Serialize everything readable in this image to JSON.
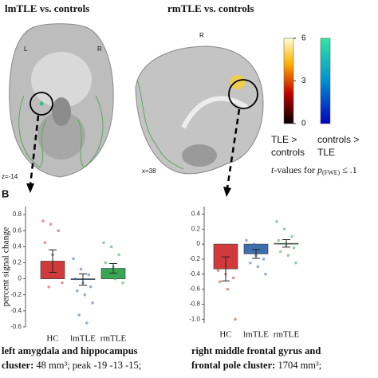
{
  "panel_a": {
    "title_left": "lmTLE vs. controls",
    "title_right": "rmTLE vs. controls",
    "orient_left_l": "L",
    "orient_left_r": "R",
    "orient_right_r": "R",
    "slice_left": "z=-14",
    "slice_right": "x=38"
  },
  "colorbar": {
    "ticks": [
      6,
      3,
      0
    ],
    "label_pos": "TLE >",
    "label_pos2": "controls",
    "label_neg": "controls >",
    "label_neg2": "TLE",
    "caption_t": "t",
    "caption_mid": "-values for ",
    "caption_p": "p",
    "caption_sub": "(FWE)",
    "caption_end": " ≤ .1"
  },
  "panel_b": {
    "label": "B"
  },
  "chart_data": [
    {
      "type": "bar",
      "ylabel": "percent signal change",
      "categories": [
        "HC",
        "lmTLE",
        "rmTLE"
      ],
      "values": [
        0.22,
        -0.01,
        0.13
      ],
      "errors": [
        0.14,
        0.07,
        0.06
      ],
      "colors": [
        "#d13a3c",
        "#3d6fae",
        "#3aa655"
      ],
      "points": [
        [
          0.72,
          0.68,
          0.6,
          0.45,
          0.3,
          0.2,
          0.12,
          0.05,
          -0.05,
          -0.1
        ],
        [
          0.25,
          0.12,
          0.05,
          0.0,
          -0.05,
          -0.1,
          -0.15,
          -0.2,
          -0.3,
          -0.45,
          -0.55
        ],
        [
          0.45,
          0.4,
          0.3,
          0.2,
          0.15,
          0.1,
          0.05,
          0.0,
          -0.05
        ]
      ],
      "ylim": [
        -0.6,
        0.9
      ],
      "yticks": [
        -0.6,
        -0.4,
        -0.2,
        0,
        0.2,
        0.4,
        0.6,
        0.8
      ]
    },
    {
      "type": "bar",
      "categories": [
        "HC",
        "lmTLE",
        "rmTLE"
      ],
      "values": [
        -0.33,
        -0.13,
        0.01
      ],
      "errors": [
        0.16,
        0.06,
        0.05
      ],
      "colors": [
        "#d13a3c",
        "#3d6fae",
        "#3aa655"
      ],
      "points": [
        [
          -0.15,
          -0.2,
          -0.28,
          -0.35,
          -0.4,
          -0.45,
          -0.5,
          -0.6,
          -1.0
        ],
        [
          0.05,
          0.0,
          -0.05,
          -0.1,
          -0.15,
          -0.2,
          -0.25,
          -0.3,
          -0.4
        ],
        [
          0.3,
          0.2,
          0.1,
          0.05,
          0.0,
          -0.05,
          -0.1,
          -0.15,
          -0.25
        ]
      ],
      "ylim": [
        -1.05,
        0.5
      ],
      "yticks": [
        {
          "value": -1,
          "label": "-1.0"
        },
        -0.8,
        -0.6,
        -0.4,
        -0.2,
        0,
        0.2,
        0.4
      ]
    }
  ],
  "captions": {
    "left_line1": "left amygdala and hippocampus",
    "left_bold2": "cluster:",
    "left_rest2": " 48 mm³; peak -19 -13 -15;",
    "right_line1": "right middle frontal gyrus and",
    "right_bold2": "frontal pole cluster:",
    "right_rest2": " 1704 mm³;"
  }
}
